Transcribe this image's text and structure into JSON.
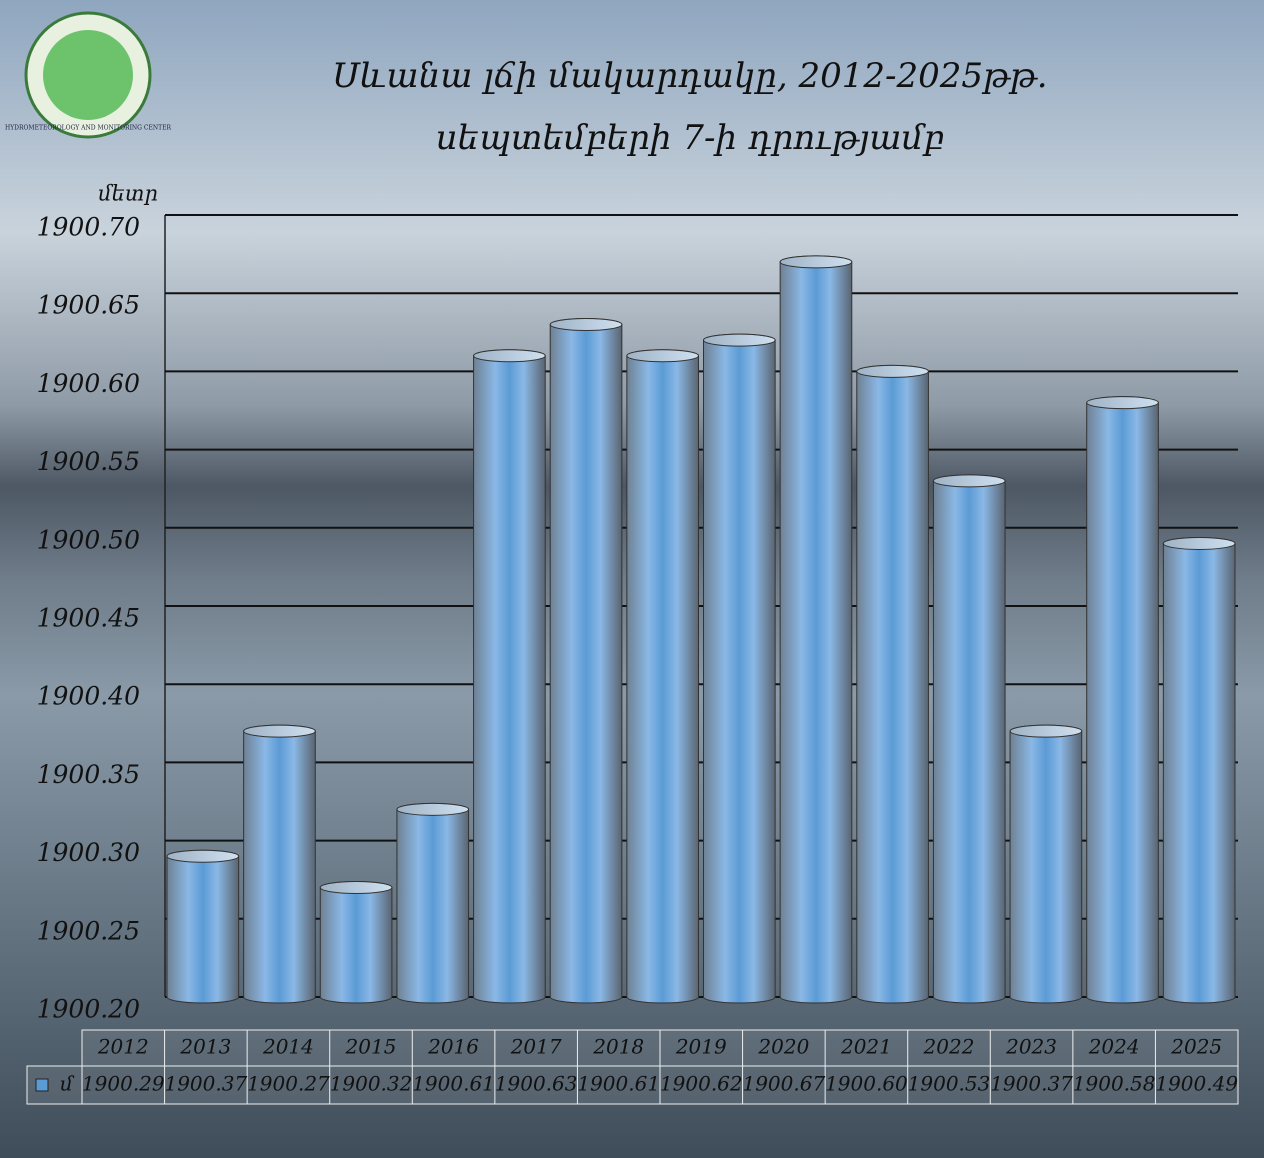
{
  "logo_text": "HYDROMETEOROLOGY AND MONITORING CENTER",
  "chart_data": {
    "type": "bar",
    "title": [
      "Սևանա լճի մակարդակը, 2012-2025թթ.",
      "սեպտեմբերի 7-ի դրությամբ"
    ],
    "y_label": "մետր",
    "categories": [
      "2012",
      "2013",
      "2014",
      "2015",
      "2016",
      "2017",
      "2018",
      "2019",
      "2020",
      "2021",
      "2022",
      "2023",
      "2024",
      "2025"
    ],
    "series": [
      {
        "name": "մ",
        "color": "#5b9bd5",
        "values": [
          1900.29,
          1900.37,
          1900.27,
          1900.32,
          1900.61,
          1900.63,
          1900.61,
          1900.62,
          1900.67,
          1900.6,
          1900.53,
          1900.37,
          1900.58,
          1900.49
        ],
        "value_labels": [
          "1900.29",
          "1900.37",
          "1900.27",
          "1900.32",
          "1900.61",
          "1900.63",
          "1900.61",
          "1900.62",
          "1900.67",
          "1900.60",
          "1900.53",
          "1900.37",
          "1900.58",
          "1900.49"
        ]
      }
    ],
    "ylim": [
      1900.2,
      1900.7
    ],
    "yticks": [
      {
        "value": 1900.2,
        "label": "1900.20"
      },
      {
        "value": 1900.25,
        "label": "1900.25"
      },
      {
        "value": 1900.3,
        "label": "1900.30"
      },
      {
        "value": 1900.35,
        "label": "1900.35"
      },
      {
        "value": 1900.4,
        "label": "1900.40"
      },
      {
        "value": 1900.45,
        "label": "1900.45"
      },
      {
        "value": 1900.5,
        "label": "1900.50"
      },
      {
        "value": 1900.55,
        "label": "1900.55"
      },
      {
        "value": 1900.6,
        "label": "1900.60"
      },
      {
        "value": 1900.65,
        "label": "1900.65"
      },
      {
        "value": 1900.7,
        "label": "1900.70"
      }
    ],
    "grid": true,
    "data_table": true
  }
}
